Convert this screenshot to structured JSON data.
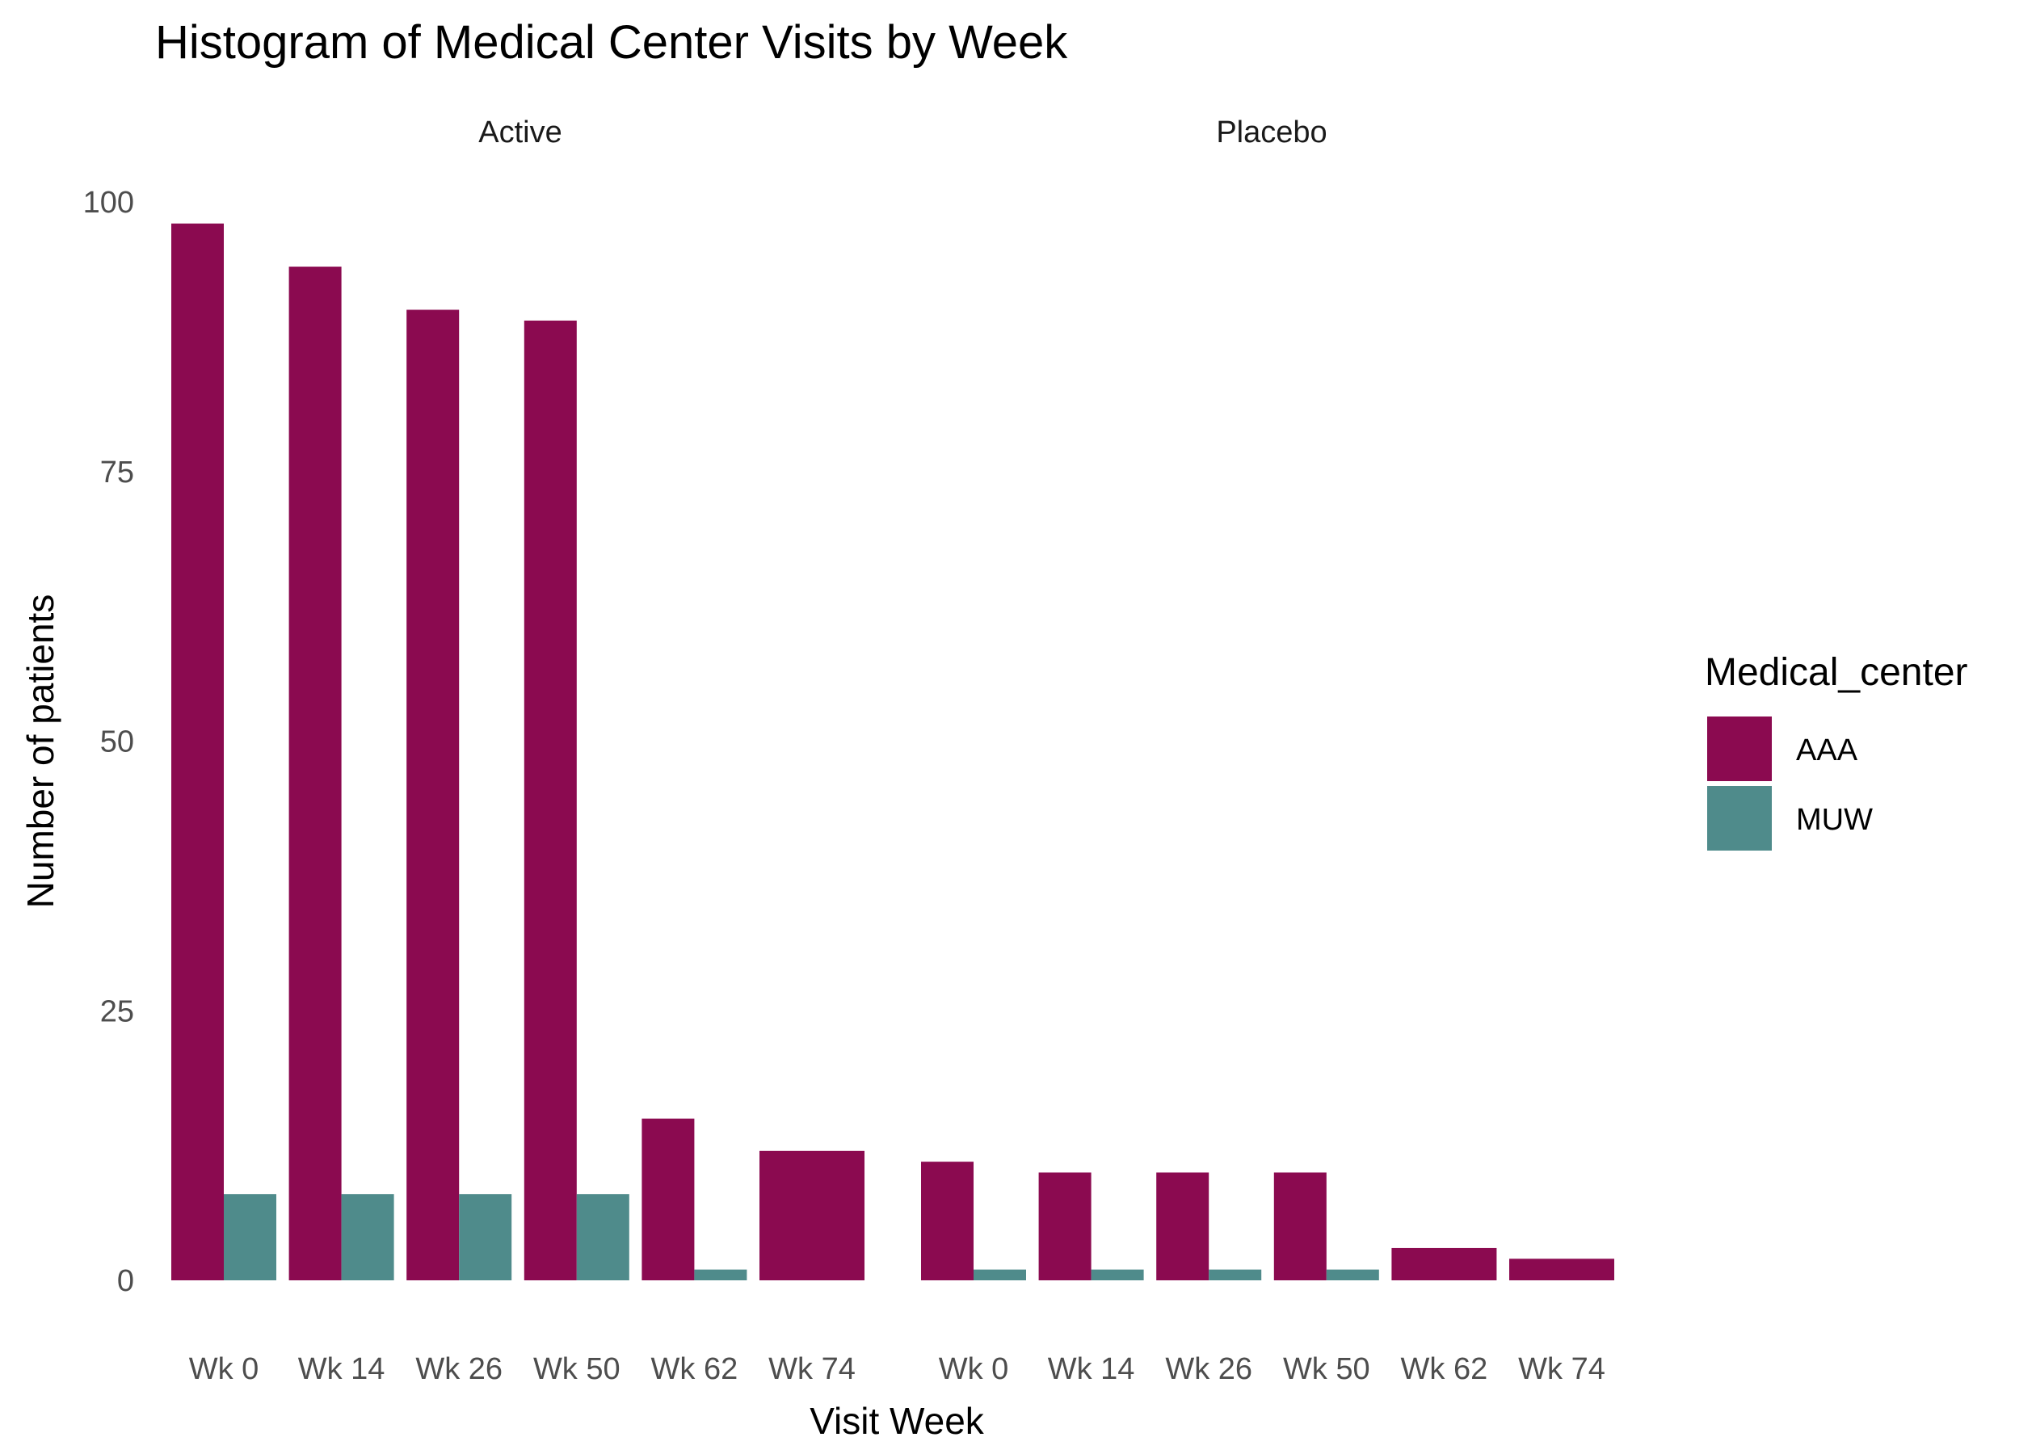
{
  "chart_data": {
    "type": "bar",
    "title": "Histogram of Medical Center Visits by Week",
    "xlabel": "Visit Week",
    "ylabel": "Number of patients",
    "ylim": [
      0,
      100
    ],
    "yticks": [
      0,
      25,
      50,
      75,
      100
    ],
    "grid": false,
    "legend": {
      "title": "Medical_center",
      "position": "right",
      "entries": [
        {
          "name": "AAA",
          "color": "#8B0A50"
        },
        {
          "name": "MUW",
          "color": "#4F8B8B"
        }
      ]
    },
    "categories": [
      "Wk 0",
      "Wk 14",
      "Wk 26",
      "Wk 50",
      "Wk 62",
      "Wk 74"
    ],
    "panels": [
      {
        "label": "Active",
        "series": [
          {
            "name": "AAA",
            "values": [
              98,
              94,
              90,
              89,
              15,
              12
            ]
          },
          {
            "name": "MUW",
            "values": [
              8,
              8,
              8,
              8,
              1,
              null
            ]
          }
        ]
      },
      {
        "label": "Placebo",
        "series": [
          {
            "name": "AAA",
            "values": [
              11,
              10,
              10,
              10,
              3,
              2
            ]
          },
          {
            "name": "MUW",
            "values": [
              1,
              1,
              1,
              1,
              null,
              null
            ]
          }
        ]
      }
    ]
  }
}
